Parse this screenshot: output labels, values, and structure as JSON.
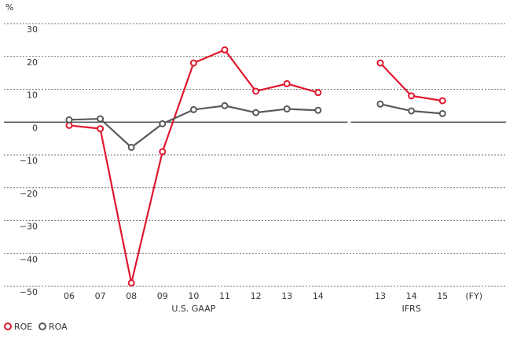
{
  "chart_data": {
    "type": "line",
    "y_label": "%",
    "x_unit": "(FY)",
    "annotations": [
      "U.S. GAAP",
      "IFRS"
    ],
    "categories": [
      "06",
      "07",
      "08",
      "09",
      "10",
      "11",
      "12",
      "13",
      "14",
      null,
      "13",
      "14",
      "15"
    ],
    "series": [
      {
        "name": "ROE",
        "color": "#e0182d",
        "values": [
          -1,
          -2,
          -49,
          -9,
          18,
          22,
          9.4,
          11.7,
          9,
          null,
          18,
          8,
          6.5
        ]
      },
      {
        "name": "ROA",
        "color": "#58595b",
        "values": [
          0.7,
          1,
          -7.7,
          -0.5,
          3.8,
          5,
          2.9,
          4,
          3.6,
          null,
          5.5,
          3.4,
          2.6
        ]
      }
    ],
    "ylim": [
      -50,
      30
    ],
    "yticks": [
      {
        "value": -50,
        "label": "−50"
      },
      {
        "value": -40,
        "label": "−40"
      },
      {
        "value": -30,
        "label": "−30"
      },
      {
        "value": -20,
        "label": "−20"
      },
      {
        "value": -10,
        "label": "−10"
      },
      0,
      10,
      20,
      30
    ],
    "grid": true,
    "legend": "bottom-left"
  }
}
